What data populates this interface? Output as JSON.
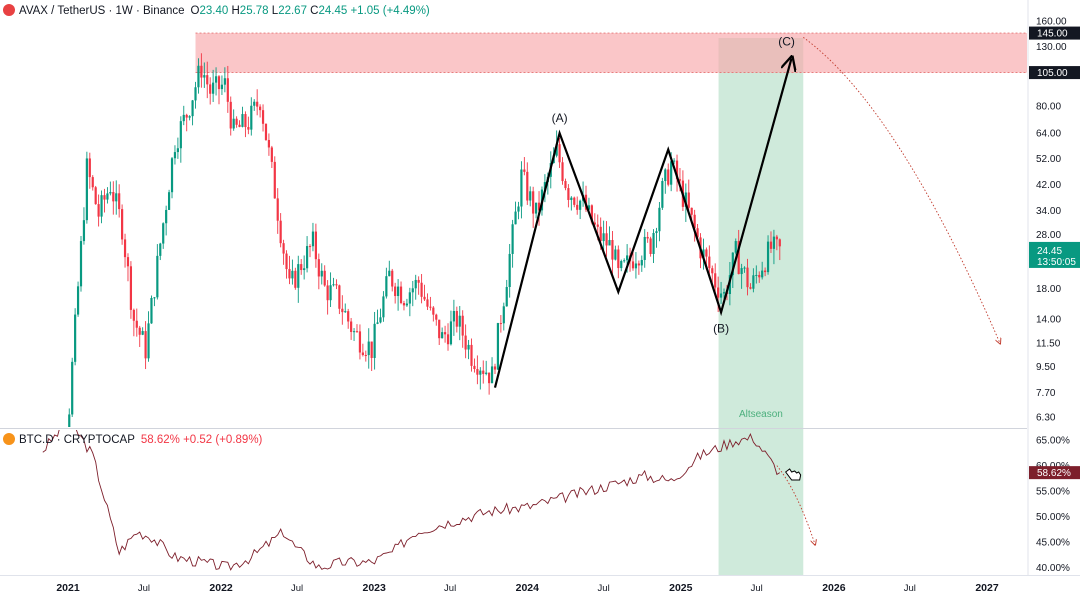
{
  "legend_main": {
    "symbol": "AVAX / TetherUS · 1W · Binance",
    "o_label": "O",
    "o": "23.40",
    "h_label": "H",
    "h": "25.78",
    "l_label": "L",
    "l": "22.67",
    "c_label": "C",
    "c": "24.45",
    "change": "+1.05 (+4.49%)",
    "icon_color": "#e84142"
  },
  "legend_sub": {
    "symbol": "BTC.D · CRYPTOCAP",
    "value": "58.62%",
    "change": "+0.52 (+0.89%)",
    "icon_color": "#f7931a"
  },
  "chart_data": [
    {
      "type": "candlestick",
      "title": "AVAX / TetherUS · 1W · Binance",
      "scale": "log",
      "ylim": [
        5.8,
        190
      ],
      "y_ticks": [
        "160.00",
        "130.00",
        "80.00",
        "64.00",
        "52.00",
        "42.00",
        "34.00",
        "28.00",
        "18.00",
        "14.00",
        "11.50",
        "9.50",
        "7.70",
        "6.30"
      ],
      "x_ticks": [
        "2021",
        "Jul",
        "2022",
        "Jul",
        "2023",
        "Jul",
        "2024",
        "Jul",
        "2025",
        "Jul",
        "2026",
        "Jul",
        "2027"
      ],
      "last_price": "24.45",
      "countdown": "13:50:05",
      "resistance_zone": {
        "low": 105,
        "high": 145,
        "low_label": "105.00",
        "high_label": "145.00"
      },
      "highlight_zone_label": "Altseason",
      "wave_labels": [
        "(A)",
        "(B)",
        "(C)"
      ],
      "wave_path": [
        {
          "date": "2023-10-16",
          "price": 8.0
        },
        {
          "date": "2024-03-18",
          "price": 64
        },
        {
          "date": "2024-08-05",
          "price": 17.5
        },
        {
          "date": "2024-12-02",
          "price": 56
        },
        {
          "date": "2025-04-07",
          "price": 14.8
        },
        {
          "date": "2025-09-22",
          "price": 118
        }
      ],
      "forecast_path": [
        {
          "date": "2025-10-20",
          "price": 140
        },
        {
          "date": "2026-06-01",
          "price": 80
        },
        {
          "date": "2027-02-01",
          "price": 11.5
        }
      ],
      "series": [
        {
          "date": "2020-11-02",
          "price": 3.5
        },
        {
          "date": "2020-12-28",
          "price": 5
        },
        {
          "date": "2021-02-01",
          "price": 25
        },
        {
          "date": "2021-02-15",
          "price": 48
        },
        {
          "date": "2021-03-15",
          "price": 33
        },
        {
          "date": "2021-04-12",
          "price": 42
        },
        {
          "date": "2021-05-10",
          "price": 30
        },
        {
          "date": "2021-06-07",
          "price": 14
        },
        {
          "date": "2021-07-05",
          "price": 11
        },
        {
          "date": "2021-08-09",
          "price": 26
        },
        {
          "date": "2021-09-13",
          "price": 60
        },
        {
          "date": "2021-10-11",
          "price": 75
        },
        {
          "date": "2021-11-15",
          "price": 110
        },
        {
          "date": "2021-12-06",
          "price": 90
        },
        {
          "date": "2022-01-10",
          "price": 95
        },
        {
          "date": "2022-01-31",
          "price": 65
        },
        {
          "date": "2022-03-07",
          "price": 70
        },
        {
          "date": "2022-04-04",
          "price": 85
        },
        {
          "date": "2022-05-09",
          "price": 40
        },
        {
          "date": "2022-06-13",
          "price": 18
        },
        {
          "date": "2022-07-11",
          "price": 22
        },
        {
          "date": "2022-08-08",
          "price": 26
        },
        {
          "date": "2022-09-05",
          "price": 18
        },
        {
          "date": "2022-10-03",
          "price": 17
        },
        {
          "date": "2022-11-14",
          "price": 12.5
        },
        {
          "date": "2022-12-26",
          "price": 11
        },
        {
          "date": "2023-02-06",
          "price": 20
        },
        {
          "date": "2023-03-13",
          "price": 17
        },
        {
          "date": "2023-04-17",
          "price": 19
        },
        {
          "date": "2023-05-15",
          "price": 14.5
        },
        {
          "date": "2023-06-12",
          "price": 12
        },
        {
          "date": "2023-07-17",
          "price": 14
        },
        {
          "date": "2023-08-21",
          "price": 10.5
        },
        {
          "date": "2023-10-09",
          "price": 8.8
        },
        {
          "date": "2023-11-13",
          "price": 20
        },
        {
          "date": "2023-12-18",
          "price": 45
        },
        {
          "date": "2024-01-22",
          "price": 33
        },
        {
          "date": "2024-03-11",
          "price": 55
        },
        {
          "date": "2024-04-08",
          "price": 40
        },
        {
          "date": "2024-05-13",
          "price": 36
        },
        {
          "date": "2024-06-17",
          "price": 28
        },
        {
          "date": "2024-07-22",
          "price": 25
        },
        {
          "date": "2024-08-05",
          "price": 20
        },
        {
          "date": "2024-09-16",
          "price": 24
        },
        {
          "date": "2024-10-21",
          "price": 26
        },
        {
          "date": "2024-11-18",
          "price": 40
        },
        {
          "date": "2024-12-09",
          "price": 50
        },
        {
          "date": "2025-01-13",
          "price": 36
        },
        {
          "date": "2025-02-17",
          "price": 25
        },
        {
          "date": "2025-03-24",
          "price": 19
        },
        {
          "date": "2025-04-14",
          "price": 17
        },
        {
          "date": "2025-05-12",
          "price": 24
        },
        {
          "date": "2025-06-16",
          "price": 18
        },
        {
          "date": "2025-07-14",
          "price": 22
        },
        {
          "date": "2025-08-04",
          "price": 25
        },
        {
          "date": "2025-08-25",
          "price": 24.45
        }
      ]
    },
    {
      "type": "line",
      "title": "BTC.D · CRYPTOCAP",
      "ylim": [
        38.5,
        67
      ],
      "y_ticks": [
        "65.00%",
        "60.00%",
        "55.00%",
        "50.00%",
        "45.00%",
        "40.00%"
      ],
      "last_value": "58.62%",
      "series": [
        {
          "date": "2020-11-02",
          "value": 63
        },
        {
          "date": "2021-01-04",
          "value": 69
        },
        {
          "date": "2021-03-01",
          "value": 62
        },
        {
          "date": "2021-05-03",
          "value": 43
        },
        {
          "date": "2021-06-14",
          "value": 47
        },
        {
          "date": "2021-07-19",
          "value": 46
        },
        {
          "date": "2021-09-13",
          "value": 42
        },
        {
          "date": "2021-11-15",
          "value": 41
        },
        {
          "date": "2022-01-17",
          "value": 40
        },
        {
          "date": "2022-03-14",
          "value": 42
        },
        {
          "date": "2022-05-30",
          "value": 47
        },
        {
          "date": "2022-06-27",
          "value": 44
        },
        {
          "date": "2022-08-22",
          "value": 40
        },
        {
          "date": "2022-10-17",
          "value": 41
        },
        {
          "date": "2022-12-26",
          "value": 41
        },
        {
          "date": "2023-02-13",
          "value": 43
        },
        {
          "date": "2023-04-10",
          "value": 47
        },
        {
          "date": "2023-07-03",
          "value": 49
        },
        {
          "date": "2023-10-02",
          "value": 51
        },
        {
          "date": "2024-01-08",
          "value": 52
        },
        {
          "date": "2024-04-08",
          "value": 54
        },
        {
          "date": "2024-07-08",
          "value": 56
        },
        {
          "date": "2024-10-07",
          "value": 58
        },
        {
          "date": "2024-12-09",
          "value": 57
        },
        {
          "date": "2025-02-17",
          "value": 62
        },
        {
          "date": "2025-05-12",
          "value": 65
        },
        {
          "date": "2025-06-23",
          "value": 65.5
        },
        {
          "date": "2025-08-11",
          "value": 60
        },
        {
          "date": "2025-08-25",
          "value": 58.62
        }
      ],
      "forecast_path": [
        {
          "date": "2025-08-18",
          "value": 60
        },
        {
          "date": "2025-10-06",
          "value": 55
        },
        {
          "date": "2025-11-17",
          "value": 44.5
        }
      ]
    }
  ],
  "colors": {
    "up": "#089981",
    "down": "#f23645",
    "zone": "#f7a8ab",
    "altseason": "#bfe3cf",
    "wave": "#000000",
    "btcd_line": "#7d1f2b",
    "grid_text": "#131722"
  }
}
